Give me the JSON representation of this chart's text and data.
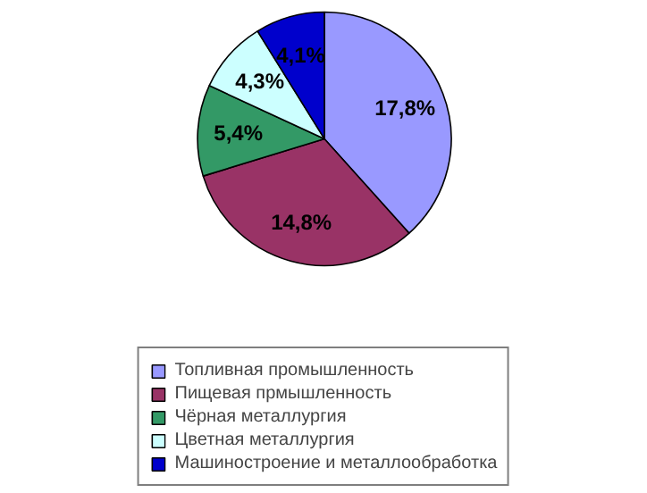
{
  "chart_data": {
    "type": "pie",
    "categories": [
      "Топливная промышленность",
      "Пищевая прмышленность",
      "Чёрная металлургия",
      "Цветная металлургия",
      "Машиностроение и металлообработка"
    ],
    "values": [
      17.8,
      14.8,
      5.4,
      4.3,
      4.1
    ],
    "value_labels": [
      "17,8%",
      "14,8%",
      "5,4%",
      "4,3%",
      "4,1%"
    ],
    "colors": [
      "#9999ff",
      "#993366",
      "#339966",
      "#ccffff",
      "#0000cc"
    ],
    "legend": "bottom"
  }
}
